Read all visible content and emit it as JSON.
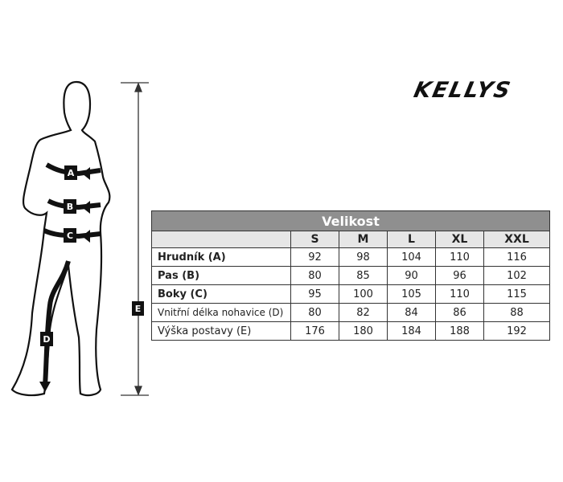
{
  "logo": "KELLYS",
  "figure": {
    "markers": [
      "A",
      "B",
      "C",
      "D",
      "E"
    ]
  },
  "table": {
    "title": "Velikost",
    "sizes": [
      "S",
      "M",
      "L",
      "XL",
      "XXL"
    ],
    "rows": [
      {
        "label": "Hrudník (A)",
        "bold": true,
        "values": [
          "92",
          "98",
          "104",
          "110",
          "116"
        ]
      },
      {
        "label": "Pas (B)",
        "bold": true,
        "values": [
          "80",
          "85",
          "90",
          "96",
          "102"
        ]
      },
      {
        "label": "Boky (C)",
        "bold": true,
        "values": [
          "95",
          "100",
          "105",
          "110",
          "115"
        ]
      },
      {
        "label": "Vnitřní délka nohavice (D)",
        "bold": false,
        "values": [
          "80",
          "82",
          "84",
          "86",
          "88"
        ]
      },
      {
        "label": "Výška postavy (E)",
        "bold": false,
        "values": [
          "176",
          "180",
          "184",
          "188",
          "192"
        ]
      }
    ]
  }
}
